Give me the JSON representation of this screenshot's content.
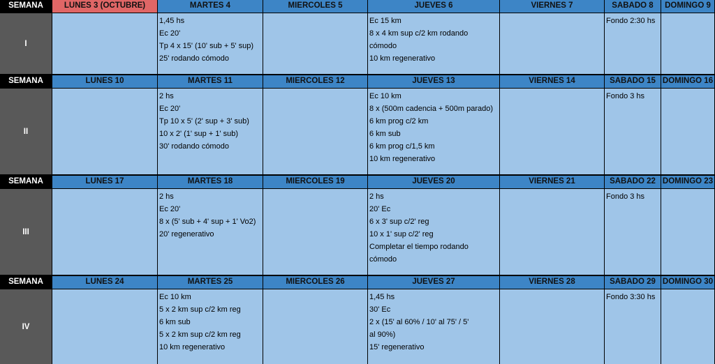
{
  "weeks": [
    {
      "label": "SEMANA",
      "numeral": "I",
      "days": [
        {
          "header": "LUNES 3 (OCTUBRE)",
          "header_color": "#e06666",
          "lines": []
        },
        {
          "header": "MARTES 4",
          "lines": [
            "1,45 hs",
            "Ec 20'",
            "Tp  4 x 15' (10' sub + 5' sup)",
            "25' rodando cómodo"
          ]
        },
        {
          "header": "MIERCOLES 5",
          "lines": []
        },
        {
          "header": "JUEVES 6",
          "lines": [
            "Ec 15 km",
            "8 x 4 km sup c/2 km rodando",
            "cómodo",
            "10 km regenerativo"
          ]
        },
        {
          "header": "VIERNES 7",
          "lines": []
        },
        {
          "header": "SABADO 8",
          "lines": [
            "Fondo 2:30 hs"
          ]
        },
        {
          "header": "DOMINGO 9",
          "lines": []
        }
      ]
    },
    {
      "label": "SEMANA",
      "numeral": "II",
      "days": [
        {
          "header": "LUNES 10",
          "lines": []
        },
        {
          "header": "MARTES 11",
          "lines": [
            "2 hs",
            "Ec 20'",
            "Tp  10 x 5' (2' sup + 3' sub)",
            "10 x 2' (1' sup + 1' sub)",
            "30' rodando cómodo"
          ]
        },
        {
          "header": "MIERCOLES 12",
          "lines": []
        },
        {
          "header": "JUEVES 13",
          "lines": [
            "Ec 10 km",
            "8 x (500m cadencia +  500m parado)",
            "6 km prog c/2 km",
            "6 km sub",
            "6 km prog c/1,5 km",
            "10 km regenerativo"
          ]
        },
        {
          "header": "VIERNES 14",
          "lines": []
        },
        {
          "header": "SABADO 15",
          "lines": [
            "Fondo 3 hs"
          ]
        },
        {
          "header": "DOMINGO 16",
          "lines": []
        }
      ]
    },
    {
      "label": "SEMANA",
      "numeral": "III",
      "days": [
        {
          "header": "LUNES 17",
          "lines": []
        },
        {
          "header": "MARTES 18",
          "lines": [
            "2 hs",
            "Ec 20'",
            "8 x (5' sub + 4' sup + 1' Vo2)",
            "20' regenerativo"
          ]
        },
        {
          "header": "MIERCOLES 19",
          "lines": []
        },
        {
          "header": "JUEVES 20",
          "lines": [
            "2 hs",
            "20' Ec",
            "6 x 3' sup c/2' reg",
            "10 x 1' sup c/2' reg",
            "Completar el tiempo rodando",
            "cómodo"
          ]
        },
        {
          "header": "VIERNES 21",
          "lines": []
        },
        {
          "header": "SABADO 22",
          "lines": [
            "Fondo 3 hs"
          ]
        },
        {
          "header": "DOMINGO 23",
          "lines": []
        }
      ]
    },
    {
      "label": "SEMANA",
      "numeral": "IV",
      "days": [
        {
          "header": "LUNES 24",
          "lines": []
        },
        {
          "header": "MARTES 25",
          "lines": [
            "Ec 10 km",
            "5 x 2 km sup c/2 km reg",
            "6 km sub",
            "5 x 2 km sup c/2 km reg",
            "10 km regenerativo"
          ]
        },
        {
          "header": "MIERCOLES 26",
          "lines": []
        },
        {
          "header": "JUEVES 27",
          "lines": [
            "1,45 hs",
            "30' Ec",
            "2 x (15' al 60% / 10' al 75' / 5'",
            "al 90%)",
            "15' regenerativo"
          ]
        },
        {
          "header": "VIERNES 28",
          "lines": []
        },
        {
          "header": "SABADO 29",
          "lines": [
            "Fondo 3:30 hs"
          ]
        },
        {
          "header": "DOMINGO 30",
          "lines": []
        }
      ]
    }
  ]
}
